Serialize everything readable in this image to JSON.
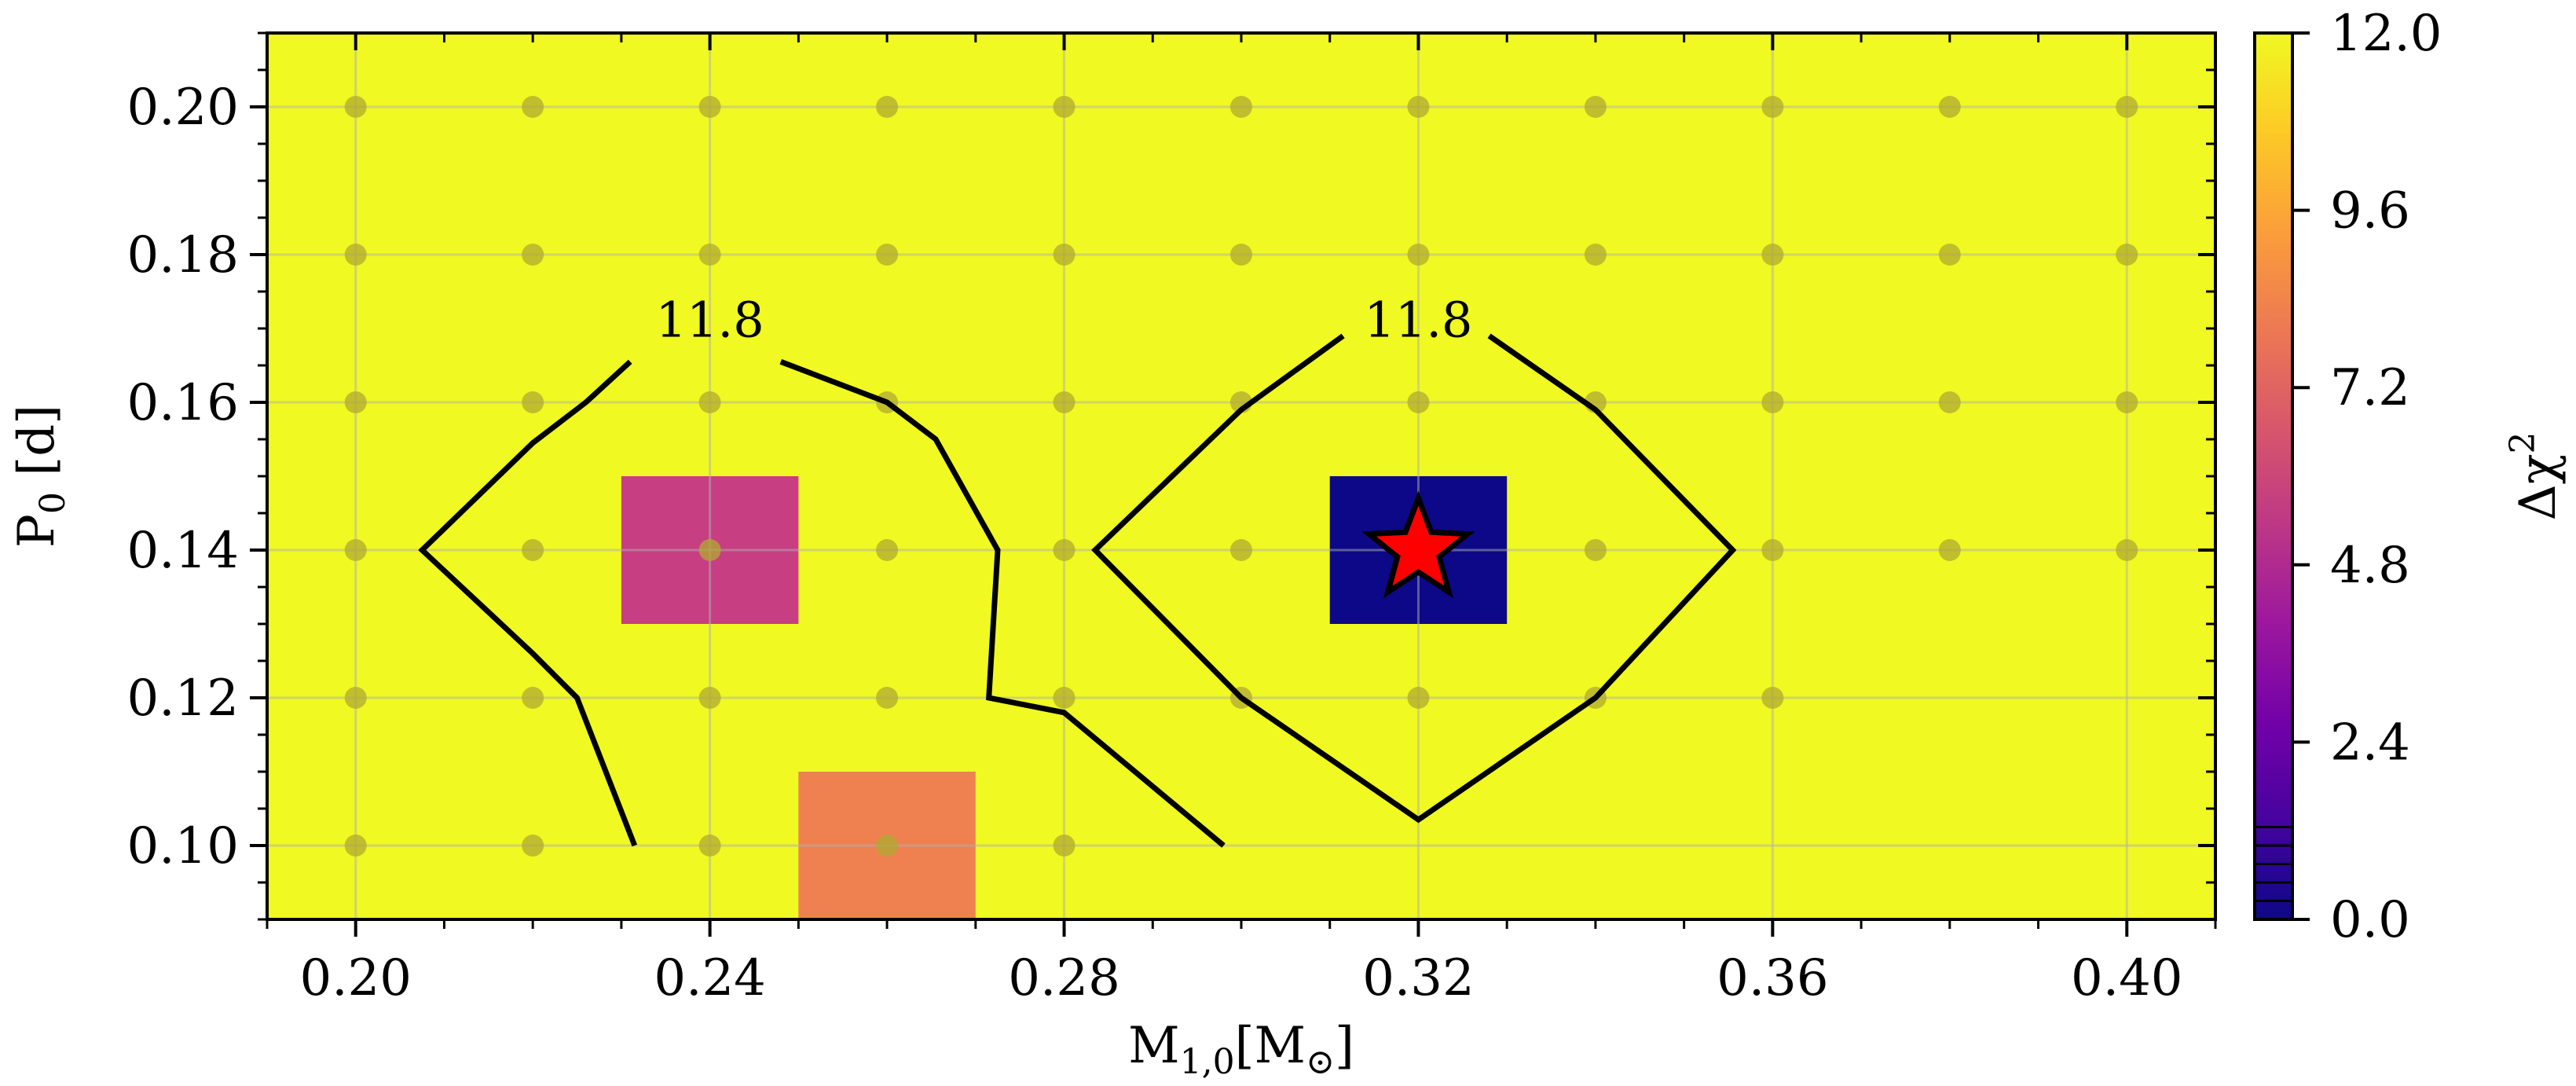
{
  "chart_data": {
    "type": "heatmap",
    "title": "",
    "xlabel": "M",
    "xlabel_sub": "1,0",
    "xlabel_unit_pre": "[M",
    "xlabel_unit_sub": "⊙",
    "xlabel_unit_post": "]",
    "ylabel": "P",
    "ylabel_sub": "0",
    "ylabel_unit": " [d]",
    "xlim": [
      0.19,
      0.41
    ],
    "ylim": [
      0.09,
      0.21
    ],
    "xticks": [
      "0.20",
      "0.24",
      "0.28",
      "0.32",
      "0.36",
      "0.40"
    ],
    "yticks": [
      "0.10",
      "0.12",
      "0.14",
      "0.16",
      "0.18",
      "0.20"
    ],
    "grid": true,
    "background_value": 12.0,
    "cells": [
      {
        "x": 0.24,
        "y": 0.14,
        "value": 6.0,
        "color": "#c83e82"
      },
      {
        "x": 0.26,
        "y": 0.1,
        "value": 8.6,
        "color": "#ef8150"
      },
      {
        "x": 0.32,
        "y": 0.14,
        "value": 0.0,
        "color": "#0d0887"
      }
    ],
    "grid_points_x": [
      0.2,
      0.22,
      0.24,
      0.26,
      0.28,
      0.3,
      0.32,
      0.34,
      0.36,
      0.38,
      0.4
    ],
    "grid_points_y": [
      0.1,
      0.12,
      0.14,
      0.16,
      0.18,
      0.2
    ],
    "missing_points": [
      [
        0.3,
        0.1
      ],
      [
        0.32,
        0.1
      ],
      [
        0.34,
        0.1
      ],
      [
        0.36,
        0.1
      ],
      [
        0.38,
        0.1
      ],
      [
        0.4,
        0.1
      ],
      [
        0.38,
        0.12
      ],
      [
        0.4,
        0.12
      ]
    ],
    "contour_level": 11.8,
    "contours": [
      {
        "label": "11.8",
        "label_pos": [
          0.24,
          0.171
        ],
        "segments": [
          [
            [
              0.231,
              0.1655
            ],
            [
              0.226,
              0.16
            ],
            [
              0.22,
              0.1545
            ],
            [
              0.2075,
              0.14
            ],
            [
              0.22,
              0.126
            ],
            [
              0.225,
              0.12
            ],
            [
              0.2315,
              0.1
            ]
          ],
          [
            [
              0.248,
              0.1655
            ],
            [
              0.26,
              0.16
            ],
            [
              0.2655,
              0.155
            ],
            [
              0.2725,
              0.14
            ],
            [
              0.2715,
              0.12
            ],
            [
              0.28,
              0.118
            ],
            [
              0.298,
              0.1
            ]
          ]
        ]
      },
      {
        "label": "11.8",
        "label_pos": [
          0.32,
          0.171
        ],
        "segments": [
          [
            [
              0.3115,
              0.169
            ],
            [
              0.3,
              0.159
            ],
            [
              0.2835,
              0.14
            ],
            [
              0.3,
              0.12
            ],
            [
              0.32,
              0.1035
            ],
            [
              0.34,
              0.12
            ],
            [
              0.3555,
              0.14
            ],
            [
              0.34,
              0.159
            ],
            [
              0.328,
              0.169
            ]
          ]
        ]
      }
    ],
    "best_fit_marker": {
      "x": 0.32,
      "y": 0.14,
      "shape": "star",
      "color": "#ff0000"
    },
    "colorbar": {
      "label": "Δχ",
      "label_sup": "2",
      "min": 0.0,
      "max": 12.0,
      "ticks": [
        "0.0",
        "2.4",
        "4.8",
        "7.2",
        "9.6",
        "12.0"
      ],
      "colormap": "plasma",
      "stops": [
        "#0d0887",
        "#46039f",
        "#7201a8",
        "#9c179e",
        "#bd3786",
        "#d8576b",
        "#ed7953",
        "#fb9f3a",
        "#fdca26",
        "#f0f921"
      ]
    },
    "colors": {
      "background_cell": "#f0f921",
      "grid_point": "#b0aa30",
      "contour": "#000000"
    }
  }
}
